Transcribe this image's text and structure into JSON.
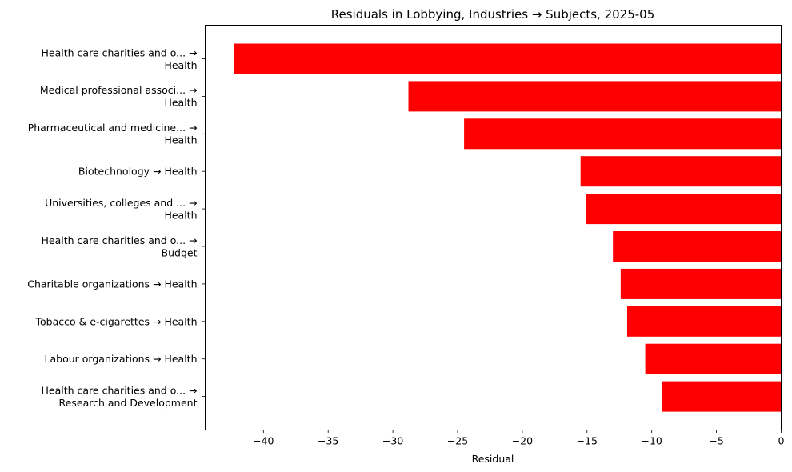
{
  "chart_data": {
    "type": "bar",
    "orientation": "horizontal",
    "title": "Residuals in Lobbying, Industries → Subjects, 2025-05",
    "xlabel": "Residual",
    "ylabel": "",
    "xlim": [
      -44.5,
      0
    ],
    "xticks": [
      -40,
      -35,
      -30,
      -25,
      -20,
      -15,
      -10,
      -5,
      0
    ],
    "xtick_labels": [
      "−40",
      "−35",
      "−30",
      "−25",
      "−20",
      "−15",
      "−10",
      "−5",
      "0"
    ],
    "bar_color": "#ff0000",
    "grid": false,
    "categories": [
      [
        "Health care charities and o... →",
        "Health"
      ],
      [
        "Medical professional associ... →",
        "Health"
      ],
      [
        "Pharmaceutical and medicine... →",
        "Health"
      ],
      [
        "Biotechnology → Health"
      ],
      [
        "Universities, colleges and ... →",
        "Health"
      ],
      [
        "Health care charities and o... →",
        "Budget"
      ],
      [
        "Charitable organizations → Health"
      ],
      [
        "Tobacco & e-cigarettes → Health"
      ],
      [
        "Labour organizations → Health"
      ],
      [
        "Health care charities and o... →",
        "Research and Development"
      ]
    ],
    "values": [
      -42.3,
      -28.8,
      -24.5,
      -15.5,
      -15.1,
      -13.0,
      -12.4,
      -11.9,
      -10.5,
      -9.2
    ]
  }
}
